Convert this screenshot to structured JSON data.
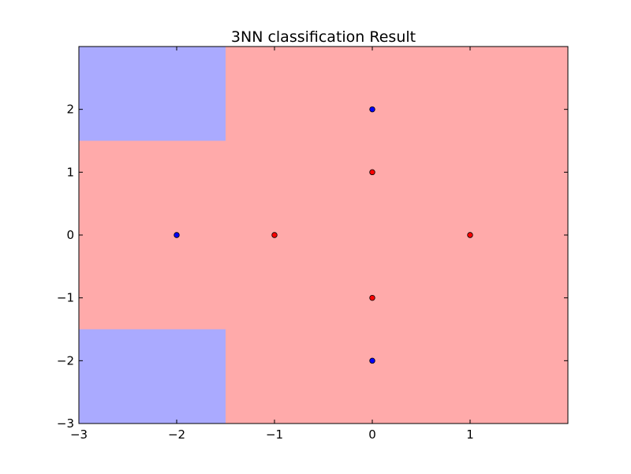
{
  "chart_data": {
    "type": "scatter",
    "title": "3NN classification Result",
    "xlabel": "",
    "ylabel": "",
    "xlim": [
      -3,
      2
    ],
    "ylim": [
      -3,
      3
    ],
    "x_ticks": [
      -3,
      -2,
      -1,
      0,
      1
    ],
    "y_ticks": [
      -3,
      -2,
      -1,
      0,
      1,
      2
    ],
    "x_tick_labels": [
      "−3",
      "−2",
      "−1",
      "0",
      "1"
    ],
    "y_tick_labels": [
      "−3",
      "−2",
      "−1",
      "0",
      "1",
      "2"
    ],
    "grid": false,
    "legend": "none",
    "background_class": "red",
    "decision_regions": [
      {
        "class": "blue",
        "x": [
          -3,
          -1.5
        ],
        "y": [
          1.5,
          3
        ]
      },
      {
        "class": "blue",
        "x": [
          -3,
          -1.5
        ],
        "y": [
          -3,
          -1.5
        ]
      }
    ],
    "points": [
      {
        "x": 0,
        "y": 2,
        "class": "blue"
      },
      {
        "x": 0,
        "y": 1,
        "class": "red"
      },
      {
        "x": -2,
        "y": 0,
        "class": "blue"
      },
      {
        "x": -1,
        "y": 0,
        "class": "red"
      },
      {
        "x": 1,
        "y": 0,
        "class": "red"
      },
      {
        "x": 0,
        "y": -1,
        "class": "red"
      },
      {
        "x": 0,
        "y": -2,
        "class": "blue"
      }
    ],
    "colors": {
      "region_red": "#ffaaaa",
      "region_blue": "#aaaaff",
      "point_red": "#ff0000",
      "point_blue": "#0000ff",
      "point_edge": "#000000"
    }
  }
}
